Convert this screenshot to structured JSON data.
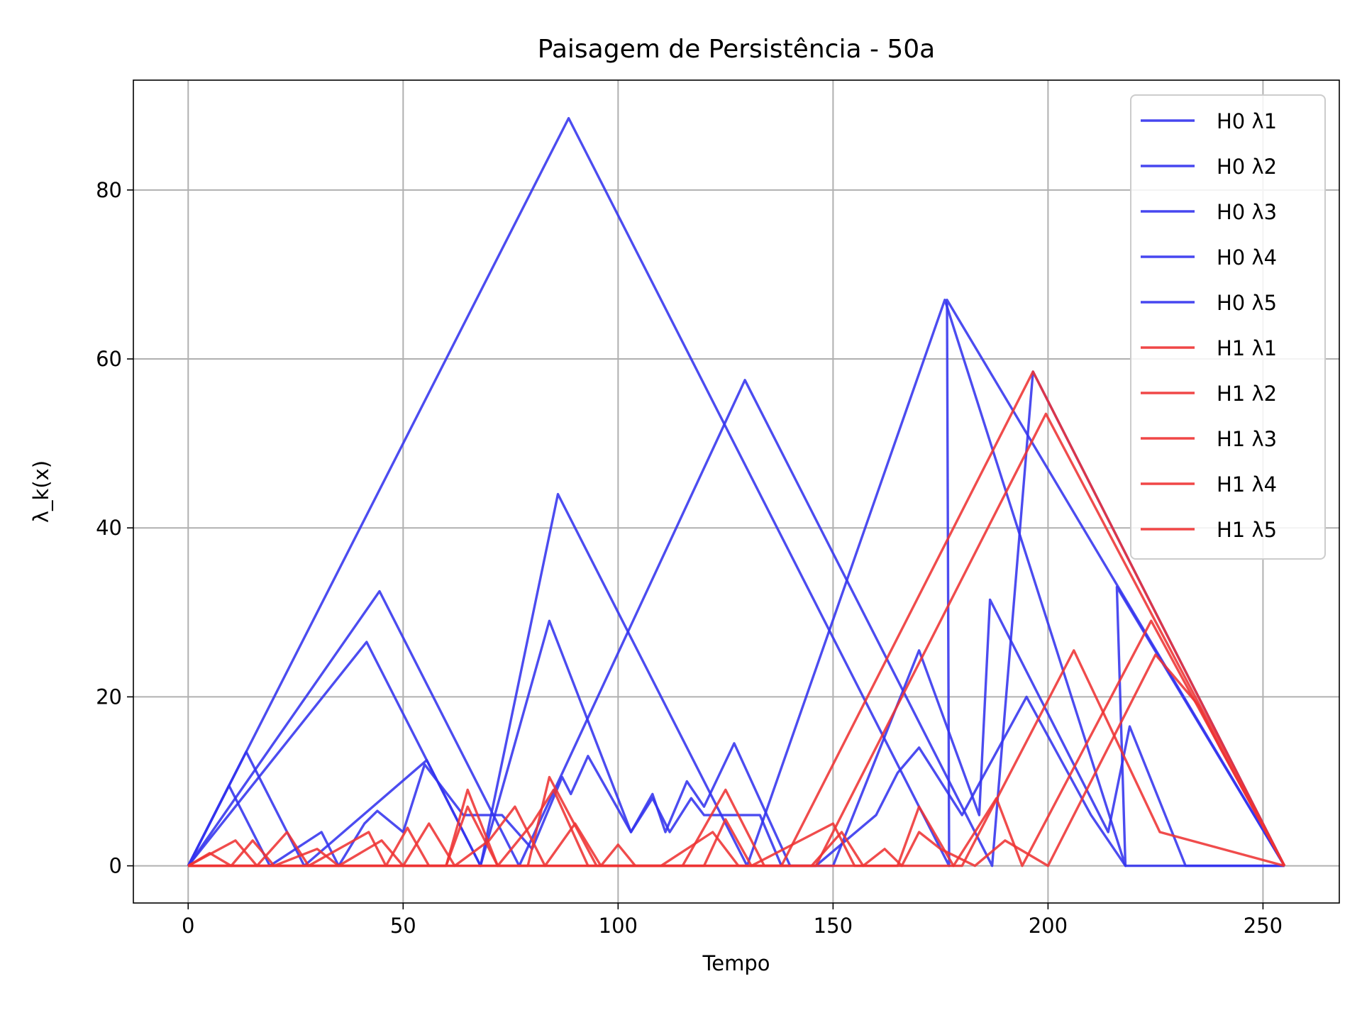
{
  "chart_data": {
    "type": "line",
    "title": "Paisagem de Persistência - 50a",
    "xlabel": "Tempo",
    "ylabel": "λ_k(x)",
    "xlim": [
      -12.75,
      267.75
    ],
    "ylim": [
      -4.4,
      93
    ],
    "xticks": [
      0,
      50,
      100,
      150,
      200,
      250
    ],
    "xtick_labels": [
      "0",
      "50",
      "100",
      "150",
      "200",
      "250"
    ],
    "yticks": [
      0,
      20,
      40,
      60,
      80
    ],
    "ytick_labels": [
      "0",
      "20",
      "40",
      "60",
      "80"
    ],
    "grid": true,
    "legend_position": "top-right",
    "series": [
      {
        "name": "H0 λ1",
        "color": "#3333ee",
        "points": [
          [
            0,
            0
          ],
          [
            88.5,
            88.5
          ],
          [
            177,
            0
          ],
          [
            176.5,
            67
          ],
          [
            255,
            0
          ]
        ]
      },
      {
        "name": "H0 λ2",
        "color": "#3333ee",
        "points": [
          [
            0,
            0
          ],
          [
            44.5,
            32.5
          ],
          [
            77,
            0
          ],
          [
            129.5,
            57.5
          ],
          [
            187,
            0
          ],
          [
            196.5,
            58.5
          ],
          [
            255,
            0
          ]
        ]
      },
      {
        "name": "H0 λ3",
        "color": "#3333ee",
        "points": [
          [
            0,
            0
          ],
          [
            41.5,
            26.5
          ],
          [
            68,
            0
          ],
          [
            86,
            44
          ],
          [
            130,
            0
          ],
          [
            176,
            67
          ],
          [
            218,
            0
          ],
          [
            216,
            33
          ],
          [
            255,
            0
          ]
        ]
      },
      {
        "name": "H0 λ4",
        "color": "#3333ee",
        "points": [
          [
            0,
            0
          ],
          [
            13.5,
            13.5
          ],
          [
            27,
            0
          ],
          [
            55.5,
            12.5
          ],
          [
            68,
            0
          ],
          [
            84,
            29
          ],
          [
            103,
            4
          ],
          [
            108,
            8.5
          ],
          [
            111,
            4
          ],
          [
            116,
            10
          ],
          [
            120,
            7
          ],
          [
            127,
            14.5
          ],
          [
            140,
            0
          ],
          [
            150,
            0
          ],
          [
            170,
            25.5
          ],
          [
            184,
            6
          ],
          [
            186.5,
            31.5
          ],
          [
            214,
            4
          ],
          [
            219,
            16.5
          ],
          [
            232,
            0
          ],
          [
            255,
            0
          ]
        ]
      },
      {
        "name": "H0 λ5",
        "color": "#3333ee",
        "points": [
          [
            0,
            0
          ],
          [
            9.5,
            9.5
          ],
          [
            19,
            0
          ],
          [
            31,
            4
          ],
          [
            35,
            0
          ],
          [
            41,
            5
          ],
          [
            44,
            6.5
          ],
          [
            50,
            4
          ],
          [
            55,
            12
          ],
          [
            64,
            6
          ],
          [
            73,
            6
          ],
          [
            80,
            2
          ],
          [
            87,
            10.5
          ],
          [
            89,
            8.5
          ],
          [
            93,
            13
          ],
          [
            103,
            4
          ],
          [
            108,
            8
          ],
          [
            112,
            4
          ],
          [
            117,
            8
          ],
          [
            120,
            6
          ],
          [
            130,
            6
          ],
          [
            133,
            6
          ],
          [
            138,
            0
          ],
          [
            146,
            0
          ],
          [
            160,
            6
          ],
          [
            165,
            11
          ],
          [
            170,
            14
          ],
          [
            180,
            6
          ],
          [
            195,
            20
          ],
          [
            210,
            6
          ],
          [
            218,
            0
          ],
          [
            255,
            0
          ]
        ]
      },
      {
        "name": "H1 λ1",
        "color": "#ee3333",
        "points": [
          [
            0,
            0
          ],
          [
            138,
            0
          ],
          [
            196.5,
            58.5
          ],
          [
            255,
            0
          ]
        ]
      },
      {
        "name": "H1 λ2",
        "color": "#ee3333",
        "points": [
          [
            0,
            0
          ],
          [
            146,
            0
          ],
          [
            199.5,
            53.5
          ],
          [
            255,
            0
          ]
        ]
      },
      {
        "name": "H1 λ3",
        "color": "#ee3333",
        "points": [
          [
            0,
            0
          ],
          [
            60,
            0
          ],
          [
            65,
            9
          ],
          [
            72,
            0
          ],
          [
            79,
            0
          ],
          [
            84,
            10.5
          ],
          [
            95,
            0
          ],
          [
            115,
            0
          ],
          [
            125,
            9
          ],
          [
            134,
            0
          ],
          [
            180,
            0
          ],
          [
            206,
            25.5
          ],
          [
            226,
            4
          ],
          [
            255,
            0
          ]
        ]
      },
      {
        "name": "H1 λ4",
        "color": "#ee3333",
        "points": [
          [
            0,
            0
          ],
          [
            11,
            3
          ],
          [
            16,
            0
          ],
          [
            23,
            4
          ],
          [
            28,
            0
          ],
          [
            42,
            4
          ],
          [
            46,
            0
          ],
          [
            51,
            4.5
          ],
          [
            56,
            0
          ],
          [
            60,
            0
          ],
          [
            65,
            7
          ],
          [
            72,
            0
          ],
          [
            80,
            5
          ],
          [
            85,
            9
          ],
          [
            93,
            0
          ],
          [
            120,
            0
          ],
          [
            125,
            5.5
          ],
          [
            131,
            0
          ],
          [
            150,
            5
          ],
          [
            155,
            0
          ],
          [
            165,
            0
          ],
          [
            170,
            7
          ],
          [
            178,
            0
          ],
          [
            188,
            8
          ],
          [
            194,
            0
          ],
          [
            224,
            29
          ],
          [
            255,
            0
          ]
        ]
      },
      {
        "name": "H1 λ5",
        "color": "#ee3333",
        "points": [
          [
            0,
            0
          ],
          [
            5,
            1.5
          ],
          [
            10,
            0
          ],
          [
            15,
            3
          ],
          [
            20,
            0
          ],
          [
            30,
            2
          ],
          [
            35,
            0
          ],
          [
            45,
            3
          ],
          [
            50,
            0
          ],
          [
            56,
            5
          ],
          [
            62,
            0
          ],
          [
            70,
            3
          ],
          [
            76,
            7
          ],
          [
            83,
            0
          ],
          [
            90,
            5
          ],
          [
            96,
            0
          ],
          [
            100,
            2.5
          ],
          [
            104,
            0
          ],
          [
            110,
            0
          ],
          [
            122,
            4
          ],
          [
            128,
            0
          ],
          [
            145,
            0
          ],
          [
            152,
            4
          ],
          [
            157,
            0
          ],
          [
            162,
            2
          ],
          [
            166,
            0
          ],
          [
            170,
            4
          ],
          [
            175,
            2
          ],
          [
            183,
            0
          ],
          [
            190,
            3
          ],
          [
            200,
            0
          ],
          [
            225,
            25
          ],
          [
            235,
            19
          ],
          [
            240,
            14
          ],
          [
            255,
            0
          ]
        ]
      }
    ]
  }
}
